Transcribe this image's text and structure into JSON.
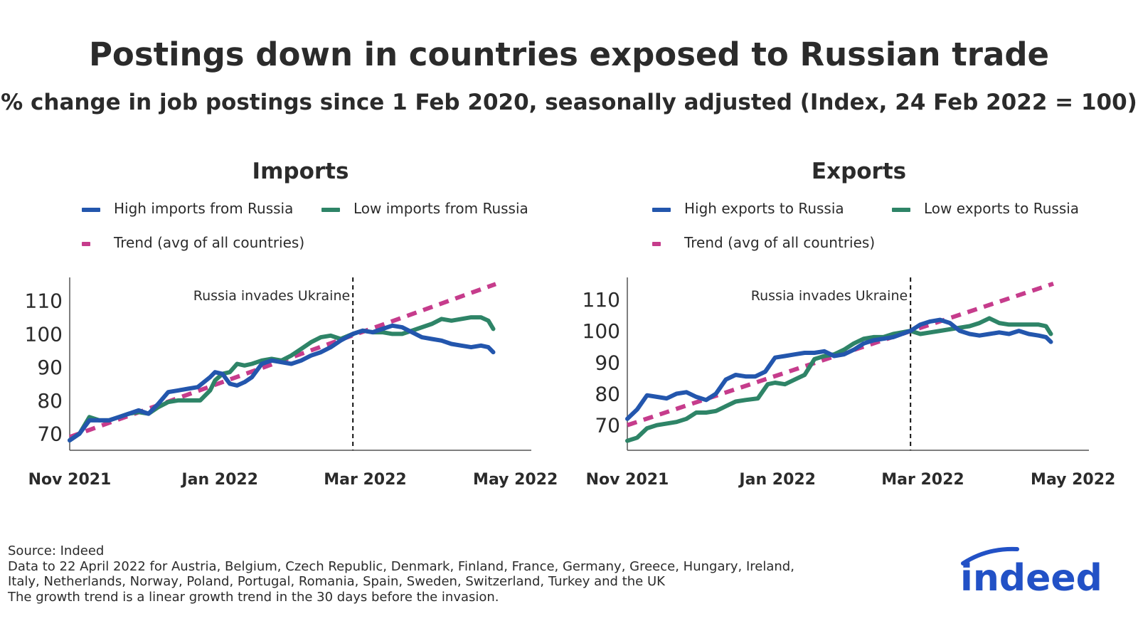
{
  "title": "Postings down in countries exposed to Russian trade",
  "subtitle": "% change in job postings since 1 Feb 2020, seasonally adjusted (Index, 24 Feb 2022 = 100)",
  "colors": {
    "high": "#2356ad",
    "low": "#2e8467",
    "trend": "#c63c8c",
    "axis": "#555555",
    "text": "#2b2b2b",
    "logo": "#2251c6"
  },
  "footer": {
    "source": "Source: Indeed",
    "note1": "Data to 22 April 2022 for Austria, Belgium, Czech Republic, Denmark, Finland, France, Germany, Greece, Hungary, Ireland,",
    "note2": "Italy, Netherlands, Norway, Poland, Portugal, Romania, Spain, Sweden, Switzerland, Turkey and the UK",
    "note3": "The growth trend is a linear growth trend in the 30 days before the invasion."
  },
  "logo": {
    "text": "indeed"
  },
  "chart_data": [
    {
      "type": "line",
      "title": "Imports",
      "x_tick_labels": [
        "Nov 2021",
        "Jan 2022",
        "Mar 2022",
        "May 2022"
      ],
      "x_tick_dates": [
        "2021-11-01",
        "2022-01-01",
        "2022-03-01",
        "2022-05-01"
      ],
      "xlim": [
        "2021-11-01",
        "2022-04-23"
      ],
      "ylim": [
        65,
        117
      ],
      "y_ticks": [
        70,
        80,
        90,
        100,
        110
      ],
      "annotation": {
        "text": "Russia invades Ukraine",
        "date": "2022-02-24"
      },
      "legend": [
        "High imports from Russia",
        "Low imports from Russia",
        "Trend (avg of all countries)"
      ],
      "series": [
        {
          "name": "High imports from Russia",
          "key": "high",
          "points": [
            [
              "2021-11-01",
              68
            ],
            [
              "2021-11-05",
              70
            ],
            [
              "2021-11-09",
              74
            ],
            [
              "2021-11-13",
              74
            ],
            [
              "2021-11-17",
              74
            ],
            [
              "2021-11-21",
              75
            ],
            [
              "2021-11-25",
              76
            ],
            [
              "2021-11-29",
              77
            ],
            [
              "2021-12-03",
              76
            ],
            [
              "2021-12-07",
              79
            ],
            [
              "2021-12-11",
              82.5
            ],
            [
              "2021-12-15",
              83
            ],
            [
              "2021-12-19",
              83.5
            ],
            [
              "2021-12-23",
              84
            ],
            [
              "2021-12-28",
              87
            ],
            [
              "2021-12-30",
              88.5
            ],
            [
              "2022-01-02",
              88
            ],
            [
              "2022-01-05",
              85
            ],
            [
              "2022-01-08",
              84.5
            ],
            [
              "2022-01-11",
              85.5
            ],
            [
              "2022-01-14",
              87
            ],
            [
              "2022-01-18",
              91
            ],
            [
              "2022-01-22",
              92
            ],
            [
              "2022-01-26",
              91.5
            ],
            [
              "2022-01-30",
              91
            ],
            [
              "2022-02-03",
              92
            ],
            [
              "2022-02-07",
              93.5
            ],
            [
              "2022-02-11",
              94.5
            ],
            [
              "2022-02-15",
              96
            ],
            [
              "2022-02-19",
              98
            ],
            [
              "2022-02-24",
              100
            ],
            [
              "2022-02-28",
              101
            ],
            [
              "2022-03-04",
              100.5
            ],
            [
              "2022-03-08",
              101.5
            ],
            [
              "2022-03-12",
              102.5
            ],
            [
              "2022-03-16",
              102
            ],
            [
              "2022-03-20",
              100.5
            ],
            [
              "2022-03-24",
              99
            ],
            [
              "2022-03-28",
              98.5
            ],
            [
              "2022-04-01",
              98
            ],
            [
              "2022-04-05",
              97
            ],
            [
              "2022-04-09",
              96.5
            ],
            [
              "2022-04-13",
              96
            ],
            [
              "2022-04-17",
              96.5
            ],
            [
              "2022-04-20",
              96
            ],
            [
              "2022-04-22",
              94.5
            ]
          ]
        },
        {
          "name": "Low imports from Russia",
          "key": "low",
          "points": [
            [
              "2021-11-01",
              68
            ],
            [
              "2021-11-05",
              70
            ],
            [
              "2021-11-09",
              75
            ],
            [
              "2021-11-13",
              74
            ],
            [
              "2021-11-17",
              74
            ],
            [
              "2021-11-21",
              75
            ],
            [
              "2021-11-25",
              76
            ],
            [
              "2021-11-29",
              76.5
            ],
            [
              "2021-12-03",
              76
            ],
            [
              "2021-12-07",
              78
            ],
            [
              "2021-12-11",
              79.5
            ],
            [
              "2021-12-15",
              80
            ],
            [
              "2021-12-19",
              80
            ],
            [
              "2021-12-24",
              80
            ],
            [
              "2021-12-28",
              83
            ],
            [
              "2021-12-30",
              86
            ],
            [
              "2022-01-02",
              88
            ],
            [
              "2022-01-05",
              88.5
            ],
            [
              "2022-01-08",
              91
            ],
            [
              "2022-01-11",
              90.5
            ],
            [
              "2022-01-14",
              91
            ],
            [
              "2022-01-18",
              92
            ],
            [
              "2022-01-22",
              92.5
            ],
            [
              "2022-01-26",
              92
            ],
            [
              "2022-01-30",
              93.5
            ],
            [
              "2022-02-03",
              95.5
            ],
            [
              "2022-02-07",
              97.5
            ],
            [
              "2022-02-11",
              99
            ],
            [
              "2022-02-15",
              99.5
            ],
            [
              "2022-02-19",
              98.5
            ],
            [
              "2022-02-24",
              100
            ],
            [
              "2022-02-28",
              101
            ],
            [
              "2022-03-04",
              100.5
            ],
            [
              "2022-03-08",
              100.5
            ],
            [
              "2022-03-12",
              100
            ],
            [
              "2022-03-16",
              100
            ],
            [
              "2022-03-20",
              101
            ],
            [
              "2022-03-24",
              102
            ],
            [
              "2022-03-28",
              103
            ],
            [
              "2022-04-01",
              104.5
            ],
            [
              "2022-04-05",
              104
            ],
            [
              "2022-04-09",
              104.5
            ],
            [
              "2022-04-13",
              105
            ],
            [
              "2022-04-17",
              105
            ],
            [
              "2022-04-20",
              104
            ],
            [
              "2022-04-22",
              101.5
            ]
          ]
        },
        {
          "name": "Trend (avg of all countries)",
          "key": "trend",
          "dashed": true,
          "points": [
            [
              "2021-11-01",
              69
            ],
            [
              "2022-04-23",
              115
            ]
          ]
        }
      ]
    },
    {
      "type": "line",
      "title": "Exports",
      "x_tick_labels": [
        "Nov 2021",
        "Jan 2022",
        "Mar 2022",
        "May 2022"
      ],
      "x_tick_dates": [
        "2021-11-01",
        "2022-01-01",
        "2022-03-01",
        "2022-05-01"
      ],
      "xlim": [
        "2021-11-01",
        "2022-04-23"
      ],
      "ylim": [
        62,
        117
      ],
      "y_ticks": [
        70,
        80,
        90,
        100,
        110
      ],
      "annotation": {
        "text": "Russia invades Ukraine",
        "date": "2022-02-24"
      },
      "legend": [
        "High exports to Russia",
        "Low exports to Russia",
        "Trend (avg of all countries)"
      ],
      "series": [
        {
          "name": "High exports to Russia",
          "key": "high",
          "points": [
            [
              "2021-11-01",
              72
            ],
            [
              "2021-11-05",
              75
            ],
            [
              "2021-11-09",
              79.5
            ],
            [
              "2021-11-13",
              79
            ],
            [
              "2021-11-17",
              78.5
            ],
            [
              "2021-11-21",
              80
            ],
            [
              "2021-11-25",
              80.5
            ],
            [
              "2021-11-29",
              79
            ],
            [
              "2021-12-03",
              78
            ],
            [
              "2021-12-07",
              80
            ],
            [
              "2021-12-11",
              84.5
            ],
            [
              "2021-12-15",
              86
            ],
            [
              "2021-12-19",
              85.5
            ],
            [
              "2021-12-23",
              85.5
            ],
            [
              "2021-12-27",
              87
            ],
            [
              "2021-12-31",
              91.5
            ],
            [
              "2022-01-04",
              92
            ],
            [
              "2022-01-08",
              92.5
            ],
            [
              "2022-01-12",
              93
            ],
            [
              "2022-01-16",
              93
            ],
            [
              "2022-01-20",
              93.5
            ],
            [
              "2022-01-24",
              92
            ],
            [
              "2022-01-28",
              92.5
            ],
            [
              "2022-02-01",
              94
            ],
            [
              "2022-02-05",
              96
            ],
            [
              "2022-02-09",
              97
            ],
            [
              "2022-02-13",
              97.5
            ],
            [
              "2022-02-17",
              98
            ],
            [
              "2022-02-24",
              100
            ],
            [
              "2022-02-28",
              102
            ],
            [
              "2022-03-04",
              103
            ],
            [
              "2022-03-08",
              103.5
            ],
            [
              "2022-03-12",
              102.5
            ],
            [
              "2022-03-16",
              100
            ],
            [
              "2022-03-20",
              99
            ],
            [
              "2022-03-24",
              98.5
            ],
            [
              "2022-03-28",
              99
            ],
            [
              "2022-04-01",
              99.5
            ],
            [
              "2022-04-05",
              99
            ],
            [
              "2022-04-09",
              100
            ],
            [
              "2022-04-13",
              99
            ],
            [
              "2022-04-17",
              98.5
            ],
            [
              "2022-04-20",
              98
            ],
            [
              "2022-04-22",
              96.5
            ]
          ]
        },
        {
          "name": "Low exports to Russia",
          "key": "low",
          "points": [
            [
              "2021-11-01",
              65
            ],
            [
              "2021-11-05",
              66
            ],
            [
              "2021-11-09",
              69
            ],
            [
              "2021-11-13",
              70
            ],
            [
              "2021-11-17",
              70.5
            ],
            [
              "2021-11-21",
              71
            ],
            [
              "2021-11-25",
              72
            ],
            [
              "2021-11-29",
              74
            ],
            [
              "2021-12-03",
              74
            ],
            [
              "2021-12-07",
              74.5
            ],
            [
              "2021-12-11",
              76
            ],
            [
              "2021-12-15",
              77.5
            ],
            [
              "2021-12-19",
              78
            ],
            [
              "2021-12-24",
              78.5
            ],
            [
              "2021-12-28",
              83
            ],
            [
              "2021-12-31",
              83.5
            ],
            [
              "2022-01-04",
              83
            ],
            [
              "2022-01-08",
              84.5
            ],
            [
              "2022-01-12",
              86
            ],
            [
              "2022-01-16",
              91
            ],
            [
              "2022-01-20",
              92
            ],
            [
              "2022-01-24",
              92.5
            ],
            [
              "2022-01-28",
              94
            ],
            [
              "2022-02-01",
              96
            ],
            [
              "2022-02-05",
              97.5
            ],
            [
              "2022-02-09",
              98
            ],
            [
              "2022-02-13",
              98
            ],
            [
              "2022-02-17",
              99
            ],
            [
              "2022-02-24",
              100
            ],
            [
              "2022-02-28",
              99
            ],
            [
              "2022-03-04",
              99.5
            ],
            [
              "2022-03-08",
              100
            ],
            [
              "2022-03-12",
              100.5
            ],
            [
              "2022-03-16",
              101
            ],
            [
              "2022-03-20",
              101.5
            ],
            [
              "2022-03-24",
              102.5
            ],
            [
              "2022-03-28",
              104
            ],
            [
              "2022-04-01",
              102.5
            ],
            [
              "2022-04-05",
              102
            ],
            [
              "2022-04-09",
              102
            ],
            [
              "2022-04-13",
              102
            ],
            [
              "2022-04-17",
              102
            ],
            [
              "2022-04-20",
              101.5
            ],
            [
              "2022-04-22",
              99
            ]
          ]
        },
        {
          "name": "Trend (avg of all countries)",
          "key": "trend",
          "dashed": true,
          "points": [
            [
              "2021-11-01",
              70
            ],
            [
              "2022-04-23",
              115
            ]
          ]
        }
      ]
    }
  ]
}
